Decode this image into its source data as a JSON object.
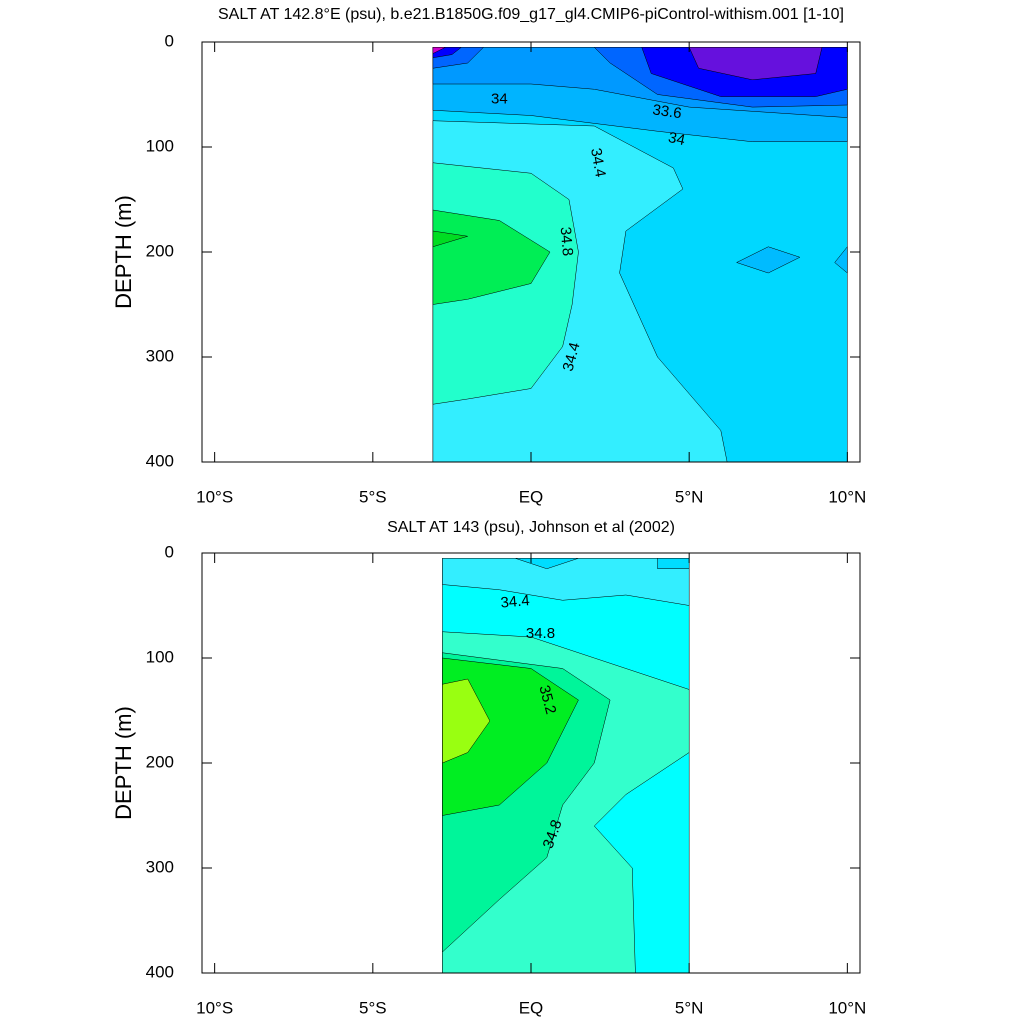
{
  "chart_data": [
    {
      "type": "contour",
      "title": "SALT AT 142.8°E (psu), b.e21.B1850G.f09_g17_gl4.CMIP6-piControl-withism.001 [1-10]",
      "ylabel": "DEPTH (m)",
      "xlim": [
        -10.4,
        10.4
      ],
      "ylim": [
        0,
        400
      ],
      "xticks": [
        {
          "value": -10,
          "label": "10°S"
        },
        {
          "value": -5,
          "label": "5°S"
        },
        {
          "value": 0,
          "label": "EQ"
        },
        {
          "value": 5,
          "label": "5°N"
        },
        {
          "value": 10,
          "label": "10°N"
        }
      ],
      "yticks": [
        0,
        100,
        200,
        300,
        400
      ],
      "regions": [
        {
          "level": 34.2,
          "color": "#00d8ff",
          "x": [
            -3.1,
            10,
            10,
            -3.1
          ],
          "y": [
            5,
            5,
            400,
            400
          ]
        },
        {
          "level": 34.4,
          "color": "#33eeff",
          "x": [
            -3.1,
            2,
            4.5,
            4.8,
            3,
            2.8,
            4,
            6,
            6.2,
            -3.1
          ],
          "y": [
            75,
            80,
            120,
            140,
            180,
            220,
            300,
            370,
            400,
            400
          ]
        },
        {
          "level": 34.6,
          "color": "#22ffcc",
          "x": [
            -3.1,
            0,
            1.2,
            1.5,
            1.3,
            1,
            0,
            -2,
            -3.1
          ],
          "y": [
            115,
            125,
            150,
            200,
            250,
            290,
            330,
            340,
            345
          ]
        },
        {
          "level": 34.8,
          "color": "#00ee55",
          "x": [
            -3.1,
            -1,
            0.6,
            0,
            -2,
            -3.1
          ],
          "y": [
            160,
            170,
            200,
            230,
            245,
            250
          ]
        },
        {
          "level": 35,
          "color": "#00dd22",
          "x": [
            -3.1,
            -2,
            -3.1
          ],
          "y": [
            180,
            185,
            195
          ]
        },
        {
          "level": 34,
          "color": "#00b4ff",
          "x": [
            -3.1,
            10,
            10,
            7,
            4,
            0,
            -3.1
          ],
          "y": [
            5,
            5,
            95,
            95,
            85,
            70,
            65
          ]
        },
        {
          "level": 33.8,
          "color": "#0099ff",
          "x": [
            -3.1,
            10,
            10,
            5,
            2,
            0,
            -3.1
          ],
          "y": [
            5,
            5,
            72,
            62,
            45,
            40,
            40
          ]
        },
        {
          "level": 33.6,
          "color": "#0066ff",
          "x": [
            2,
            2.5,
            4,
            7,
            10,
            10
          ],
          "y": [
            5,
            20,
            50,
            62,
            60,
            5
          ]
        },
        {
          "level": 33.6,
          "color": "#0066ff",
          "x": [
            -3.1,
            -1.5,
            -2,
            -3.1
          ],
          "y": [
            5,
            5,
            20,
            25
          ]
        },
        {
          "level": 33.4,
          "color": "#0000ff",
          "x": [
            3.5,
            3.8,
            6,
            9,
            10,
            10
          ],
          "y": [
            5,
            30,
            52,
            52,
            45,
            5
          ]
        },
        {
          "level": 33.4,
          "color": "#0000ff",
          "x": [
            -3.1,
            -2.2,
            -2.5,
            -3.1
          ],
          "y": [
            5,
            5,
            12,
            15
          ]
        },
        {
          "level": 33.2,
          "color": "#6611dd",
          "x": [
            5,
            5.3,
            7,
            9,
            9.2
          ],
          "y": [
            5,
            25,
            36,
            30,
            5
          ]
        },
        {
          "level": 33.2,
          "color": "#cc00cc",
          "x": [
            -3.1,
            -2.7,
            -3.1
          ],
          "y": [
            5,
            5,
            11
          ]
        },
        {
          "level": 34,
          "color": "#00bbff",
          "x": [
            6.5,
            7.5,
            8.5,
            7.5
          ],
          "y": [
            210,
            195,
            205,
            220
          ]
        },
        {
          "level": 34,
          "color": "#00bbff",
          "x": [
            10,
            9.6,
            10
          ],
          "y": [
            195,
            210,
            220
          ]
        }
      ],
      "contour_labels": [
        {
          "value": 34,
          "x": -1,
          "y": 55
        },
        {
          "value": 33.6,
          "x": 4.3,
          "y": 67
        },
        {
          "value": 34,
          "x": 4.6,
          "y": 93
        },
        {
          "value": 34.4,
          "x": 2.1,
          "y": 115
        },
        {
          "value": 34.8,
          "x": 1.1,
          "y": 190
        },
        {
          "value": 34.4,
          "x": 1.3,
          "y": 300
        }
      ]
    },
    {
      "type": "contour",
      "title": "SALT AT 143 (psu), Johnson et al (2002)",
      "ylabel": "DEPTH (m)",
      "xlim": [
        -10.4,
        10.4
      ],
      "ylim": [
        0,
        400
      ],
      "xticks": [
        {
          "value": -10,
          "label": "10°S"
        },
        {
          "value": -5,
          "label": "5°S"
        },
        {
          "value": 0,
          "label": "EQ"
        },
        {
          "value": 5,
          "label": "5°N"
        },
        {
          "value": 10,
          "label": "10°N"
        }
      ],
      "yticks": [
        0,
        100,
        200,
        300,
        400
      ],
      "regions": [
        {
          "level": 34.6,
          "color": "#00ffff",
          "x": [
            -2.8,
            5,
            5,
            -2.8
          ],
          "y": [
            5,
            5,
            400,
            400
          ]
        },
        {
          "level": 34.8,
          "color": "#33ffcc",
          "x": [
            -2.8,
            0,
            2,
            4,
            5,
            5,
            3,
            2,
            3.2,
            3.3,
            -2.8
          ],
          "y": [
            75,
            80,
            100,
            120,
            130,
            190,
            230,
            260,
            300,
            400,
            400
          ]
        },
        {
          "level": 35,
          "color": "#00f59a",
          "x": [
            -2.8,
            1,
            2.5,
            2,
            1,
            0.5,
            -1,
            -2.8
          ],
          "y": [
            95,
            110,
            140,
            200,
            240,
            290,
            330,
            380
          ]
        },
        {
          "level": 35.2,
          "color": "#00ee22",
          "x": [
            -2.8,
            0,
            1.5,
            0.5,
            -1,
            -2.8
          ],
          "y": [
            100,
            110,
            140,
            200,
            240,
            250
          ]
        },
        {
          "level": 35.4,
          "color": "#99ff11",
          "x": [
            -2.8,
            -2,
            -1.3,
            -2,
            -2.8
          ],
          "y": [
            125,
            120,
            160,
            190,
            200
          ]
        },
        {
          "level": 34.4,
          "color": "#33eeff",
          "x": [
            -2.8,
            5,
            5,
            3,
            1,
            -1,
            -2.8
          ],
          "y": [
            5,
            5,
            50,
            40,
            45,
            35,
            30
          ]
        },
        {
          "level": 34.2,
          "color": "#00ddff",
          "x": [
            -0.5,
            0.5,
            1.5
          ],
          "y": [
            5,
            15,
            5
          ]
        },
        {
          "level": 34.2,
          "color": "#00ddff",
          "x": [
            4,
            4,
            5,
            5
          ],
          "y": [
            5,
            15,
            15,
            5
          ]
        }
      ],
      "contour_labels": [
        {
          "value": 34.4,
          "x": -0.5,
          "y": 47
        },
        {
          "value": 34.8,
          "x": 0.3,
          "y": 77
        },
        {
          "value": 35.2,
          "x": 0.5,
          "y": 140
        },
        {
          "value": 34.8,
          "x": 0.7,
          "y": 268
        }
      ]
    }
  ]
}
